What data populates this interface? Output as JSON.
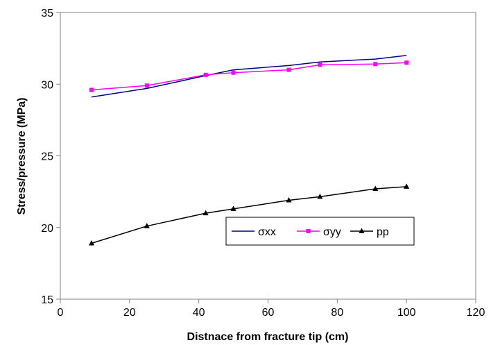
{
  "chart_data": {
    "type": "line",
    "title": "",
    "xlabel": "Distnace from fracture tip (cm)",
    "ylabel": "Stress/pressure (MPa)",
    "xlim": [
      0,
      120
    ],
    "ylim": [
      15,
      35
    ],
    "xticks": [
      0,
      20,
      40,
      60,
      80,
      100,
      120
    ],
    "yticks": [
      15,
      20,
      25,
      30,
      35
    ],
    "xtick_labels": [
      "0",
      "20",
      "40",
      "60",
      "80",
      "100",
      "120"
    ],
    "ytick_labels": [
      "15",
      "20",
      "25",
      "30",
      "35"
    ],
    "grid": false,
    "legend": "inside-lower-right",
    "series": [
      {
        "name": "σxx",
        "color": "#000080",
        "marker": "none",
        "x": [
          9,
          25,
          42,
          50,
          66,
          75,
          91,
          100
        ],
        "y": [
          29.1,
          29.7,
          30.6,
          31.0,
          31.3,
          31.55,
          31.75,
          32.0
        ]
      },
      {
        "name": "σyy",
        "color": "#ff00ff",
        "marker": "square",
        "x": [
          9,
          25,
          42,
          50,
          66,
          75,
          91,
          100
        ],
        "y": [
          29.6,
          29.9,
          30.65,
          30.8,
          31.0,
          31.35,
          31.4,
          31.5
        ]
      },
      {
        "name": "pp",
        "color": "#000000",
        "marker": "triangle",
        "x": [
          9,
          25,
          42,
          50,
          66,
          75,
          91,
          100
        ],
        "y": [
          18.9,
          20.1,
          21.0,
          21.3,
          21.9,
          22.15,
          22.7,
          22.85
        ]
      }
    ]
  }
}
